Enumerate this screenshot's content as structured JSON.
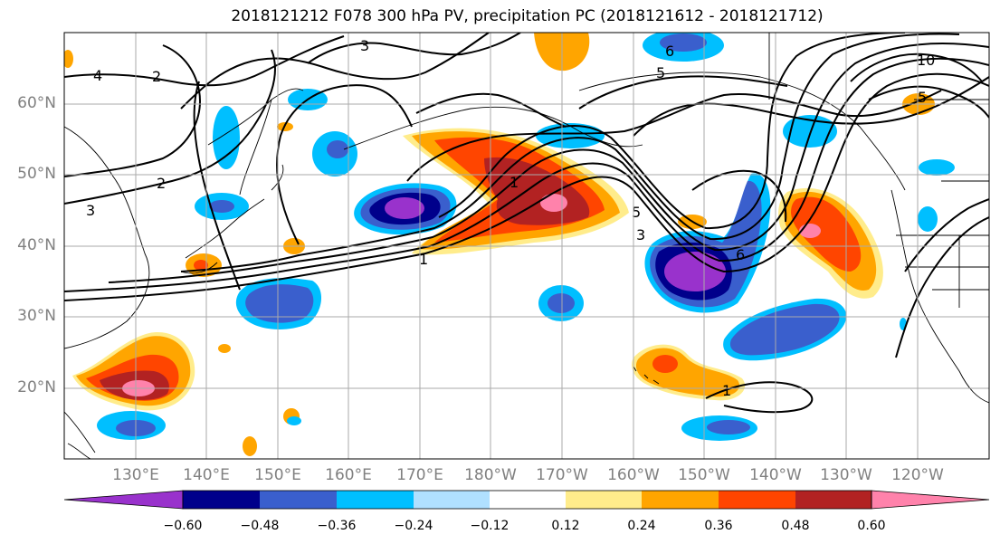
{
  "title": "2018121212 F078 300 hPa PV, precipitation PC (2018121612 - 2018121712)",
  "lat_labels": [
    "60°N",
    "50°N",
    "40°N",
    "30°N",
    "20°N"
  ],
  "lon_labels": [
    "130°E",
    "140°E",
    "150°E",
    "160°E",
    "170°E",
    "180°W",
    "170°W",
    "160°W",
    "150°W",
    "140°W",
    "130°W",
    "120°W"
  ],
  "colorbar": {
    "ticks": [
      "−0.60",
      "−0.48",
      "−0.36",
      "−0.24",
      "−0.12",
      "0.12",
      "0.24",
      "0.36",
      "0.48",
      "0.60"
    ],
    "colors": [
      "#9932cc",
      "#00008b",
      "#3a5fcd",
      "#00bfff",
      "#b0e0ff",
      "#ffffff",
      "#ffec8b",
      "#ffa500",
      "#ff4500",
      "#b22222",
      "#ff82ab"
    ]
  },
  "contour_labels": [
    "4",
    "2",
    "3",
    "2",
    "3",
    "1",
    "1",
    "5",
    "3",
    "6",
    "5",
    "6",
    "10",
    "5",
    "1"
  ]
}
